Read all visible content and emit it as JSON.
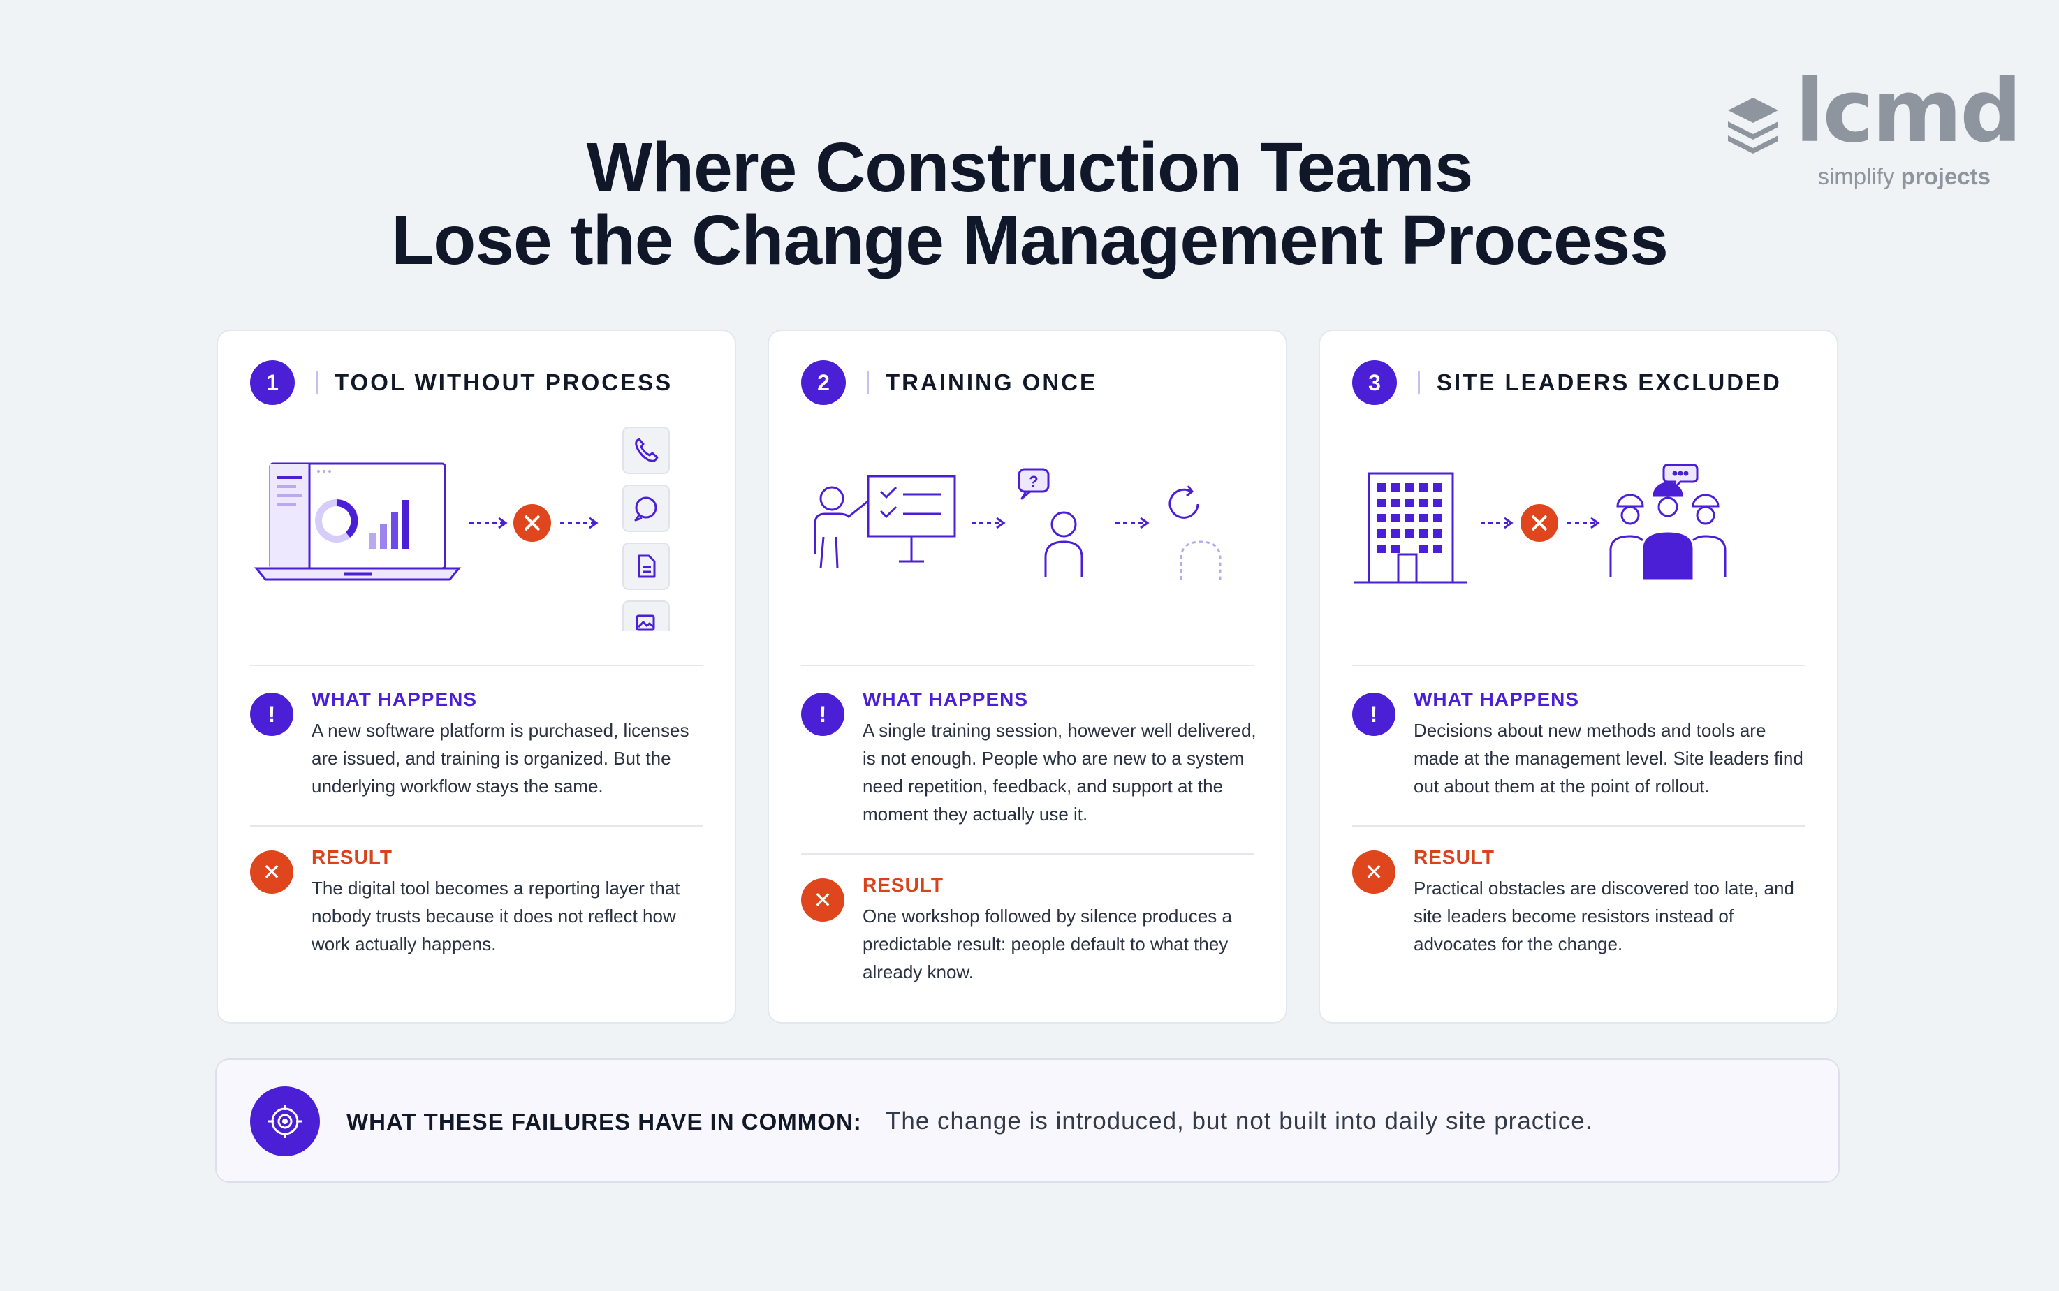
{
  "logo": {
    "word": "lcmd",
    "tagline_light": "simplify ",
    "tagline_bold": "projects"
  },
  "title": {
    "line1": "Where Construction Teams",
    "line2": "Lose the Change Management Process"
  },
  "cards": [
    {
      "number": "1",
      "title": "TOOL WITHOUT PROCESS",
      "what_label": "WHAT HAPPENS",
      "what_text": "A new software platform is purchased, licenses are issued, and training is organized. But the underlying workflow stays the same.",
      "result_label": "RESULT",
      "result_text": "The digital tool becomes a reporting layer that nobody trusts because it does not reflect how work actually happens."
    },
    {
      "number": "2",
      "title": "TRAINING ONCE",
      "what_label": "WHAT HAPPENS",
      "what_text": "A single training session, however well delivered, is not enough. People who are new to a system need repetition, feedback, and support at the moment they actually use it.",
      "result_label": "RESULT",
      "result_text": "One workshop followed by silence produces a predictable result: people default to what they already know."
    },
    {
      "number": "3",
      "title": "SITE LEADERS EXCLUDED",
      "what_label": "WHAT HAPPENS",
      "what_text": "Decisions about new methods and tools are made at the management level. Site leaders find out about them at the point of rollout.",
      "result_label": "RESULT",
      "result_text": "Practical obstacles are discovered too late, and site leaders become resistors instead of advocates for the change."
    }
  ],
  "icons": {
    "what": "exclamation-icon",
    "result": "x-icon",
    "footer": "target-icon",
    "card1": [
      "laptop-dashboard-icon",
      "blocked-icon",
      "phone-icon",
      "whatsapp-icon",
      "document-icon",
      "image-icon"
    ],
    "card2": [
      "trainer-board-icon",
      "question-person-icon",
      "fading-person-icon"
    ],
    "card3": [
      "office-building-icon",
      "blocked-icon",
      "site-workers-icon"
    ]
  },
  "footer": {
    "label": "WHAT THESE FAILURES HAVE IN COMMON:",
    "text": "The change is introduced, but not built into daily site practice."
  },
  "colors": {
    "accent": "#4a1fd6",
    "danger": "#e0461e",
    "background": "#f0f3f6",
    "logo": "#8f959e"
  }
}
